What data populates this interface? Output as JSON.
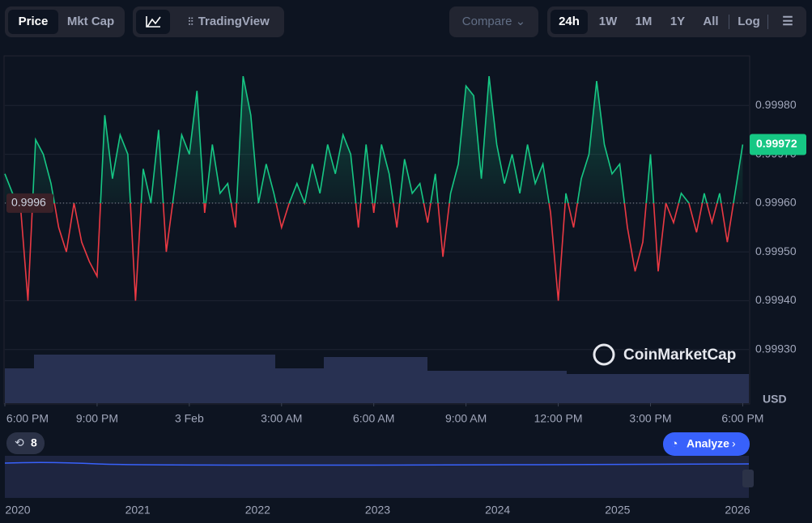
{
  "toolbar": {
    "view_tabs": [
      "Price",
      "Mkt Cap"
    ],
    "tradingview": "TradingView",
    "compare": "Compare",
    "ranges": [
      "24h",
      "1W",
      "1M",
      "1Y",
      "All"
    ],
    "log": "Log"
  },
  "watermark": "CoinMarketCap",
  "history_count": "8",
  "analyze": "Analyze",
  "chart_data": {
    "type": "line",
    "y_unit": "USD",
    "baseline": 0.9996,
    "up_color": "#16c784",
    "down_color": "#ea3943",
    "x": [
      0,
      0.25,
      0.5,
      0.75,
      1,
      1.25,
      1.5,
      1.75,
      2,
      2.25,
      2.5,
      2.75,
      3,
      3.25,
      3.5,
      3.75,
      4,
      4.25,
      4.5,
      4.75,
      5,
      5.25,
      5.5,
      5.75,
      6,
      6.25,
      6.5,
      6.75,
      7,
      7.25,
      7.5,
      7.75,
      8,
      8.25,
      8.5,
      8.75,
      9,
      9.25,
      9.5,
      9.75,
      10,
      10.25,
      10.5,
      10.75,
      11,
      11.25,
      11.5,
      11.75,
      12,
      12.25,
      12.5,
      12.75,
      13,
      13.25,
      13.5,
      13.75,
      14,
      14.25,
      14.5,
      14.75,
      15,
      15.25,
      15.5,
      15.75,
      16,
      16.25,
      16.5,
      16.75,
      17,
      17.25,
      17.5,
      17.75,
      18,
      18.25,
      18.5,
      18.75,
      19,
      19.25,
      19.5,
      19.75,
      20,
      20.25,
      20.5,
      20.75,
      21,
      21.25,
      21.5,
      21.75,
      22,
      22.25,
      22.5,
      22.75,
      23,
      23.25,
      23.5,
      23.75,
      24
    ],
    "series": [
      {
        "name": "Price",
        "values": [
          0.99966,
          0.99962,
          0.9996,
          0.9994,
          0.99973,
          0.9997,
          0.99964,
          0.99955,
          0.9995,
          0.9996,
          0.99952,
          0.99948,
          0.99945,
          0.99978,
          0.99965,
          0.99974,
          0.9997,
          0.9994,
          0.99967,
          0.9996,
          0.99975,
          0.9995,
          0.99962,
          0.99974,
          0.9997,
          0.99983,
          0.99958,
          0.99972,
          0.99962,
          0.99964,
          0.99955,
          0.99986,
          0.99978,
          0.9996,
          0.99968,
          0.99962,
          0.99955,
          0.9996,
          0.99964,
          0.9996,
          0.99968,
          0.99962,
          0.99972,
          0.99966,
          0.99974,
          0.9997,
          0.99955,
          0.99972,
          0.99958,
          0.99972,
          0.99966,
          0.99955,
          0.99969,
          0.99962,
          0.99964,
          0.99956,
          0.99966,
          0.99949,
          0.99962,
          0.99968,
          0.99984,
          0.99982,
          0.99965,
          0.99986,
          0.99972,
          0.99964,
          0.9997,
          0.99962,
          0.99972,
          0.99964,
          0.99968,
          0.99958,
          0.9994,
          0.99962,
          0.99955,
          0.99965,
          0.9997,
          0.99985,
          0.99972,
          0.99966,
          0.99968,
          0.99955,
          0.99946,
          0.99952,
          0.9997,
          0.99946,
          0.9996,
          0.99956,
          0.99962,
          0.9996,
          0.99954,
          0.99962,
          0.99956,
          0.99962,
          0.99952,
          0.99962,
          0.99972
        ]
      }
    ],
    "xlim": [
      0,
      24.2
    ],
    "xticks": [
      {
        "value": 0,
        "label": "6:00 PM"
      },
      {
        "value": 3,
        "label": "9:00 PM"
      },
      {
        "value": 6,
        "label": "3 Feb"
      },
      {
        "value": 9,
        "label": "3:00 AM"
      },
      {
        "value": 12,
        "label": "6:00 AM"
      },
      {
        "value": 15,
        "label": "9:00 AM"
      },
      {
        "value": 18,
        "label": "12:00 PM"
      },
      {
        "value": 21,
        "label": "3:00 PM"
      },
      {
        "value": 24,
        "label": "6:00 PM"
      }
    ],
    "ylim": [
      0.99919,
      0.9999
    ],
    "yticks": [
      {
        "value": 0.9993,
        "label": "0.99930"
      },
      {
        "value": 0.9994,
        "label": "0.99940"
      },
      {
        "value": 0.9995,
        "label": "0.99950"
      },
      {
        "value": 0.9996,
        "label": "0.99960"
      },
      {
        "value": 0.9997,
        "label": "0.99970"
      },
      {
        "value": 0.9998,
        "label": "0.99980"
      }
    ],
    "grid": true,
    "navigator": {
      "xlim": [
        2020,
        2026
      ],
      "xticks": [
        2020,
        2021,
        2022,
        2023,
        2024,
        2025,
        2026
      ]
    }
  }
}
